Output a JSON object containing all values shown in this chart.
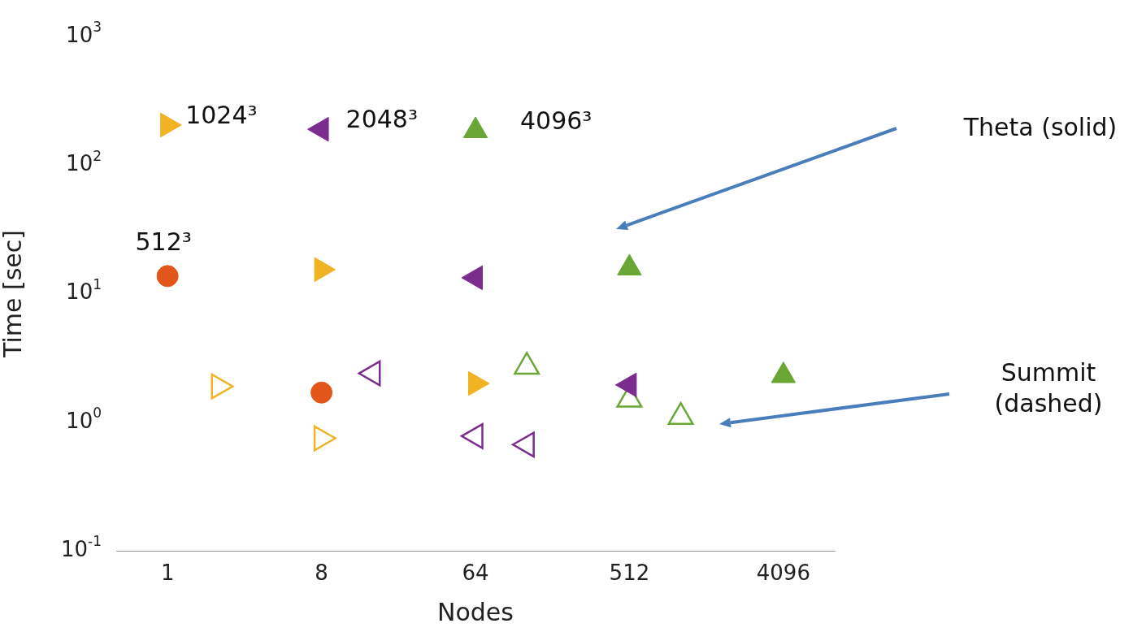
{
  "chart_data": {
    "type": "scatter",
    "xlabel": "Nodes",
    "ylabel": "Time [sec]",
    "log": "xy",
    "legend": false,
    "grid": false,
    "marker": "triangle",
    "xlim": [
      0.5,
      8192
    ],
    "xticks": [
      1,
      8,
      64,
      512,
      4096
    ],
    "ylim": [
      0.1,
      1000
    ],
    "yticks": [
      {
        "value": 0.1,
        "label": "10$^{-1}$"
      },
      {
        "value": 1,
        "label": "10$^{0}$"
      },
      {
        "value": 10,
        "label": "10$^{1}$"
      },
      {
        "value": 100,
        "label": "10$^{2}$"
      },
      {
        "value": 1000,
        "label": "10$^{3}$"
      }
    ],
    "annotations": [
      "Theta (solid)",
      "Summit (dashed)"
    ],
    "series": [
      {
        "name": "512³",
        "color": "#e2561c",
        "marker": "circle",
        "x": [
          1,
          8
        ],
        "values": [
          13.7,
          1.7
        ]
      },
      {
        "name": "1024³",
        "color": "#f0b323",
        "x": [
          1,
          8,
          64
        ],
        "values": [
          205,
          15.4,
          2.0
        ]
      },
      {
        "name": "2048³",
        "color": "#7b2d8e",
        "x": [
          8,
          64,
          512
        ],
        "values": [
          190,
          13.3,
          1.95
        ]
      },
      {
        "name": "4096³",
        "color": "#6aa634",
        "x": [
          64,
          512,
          4096
        ],
        "values": [
          185,
          15.8,
          2.3
        ]
      },
      {
        "color": "#f0b323",
        "x": [
          2,
          8
        ],
        "values": [
          1.9,
          0.75
        ]
      },
      {
        "color": "#7b2d8e",
        "x": [
          16,
          64,
          128
        ],
        "values": [
          2.4,
          0.78,
          0.67
        ]
      },
      {
        "color": "#6aa634",
        "x": [
          128,
          512,
          1024
        ],
        "values": [
          2.7,
          1.5,
          1.1
        ]
      }
    ]
  }
}
